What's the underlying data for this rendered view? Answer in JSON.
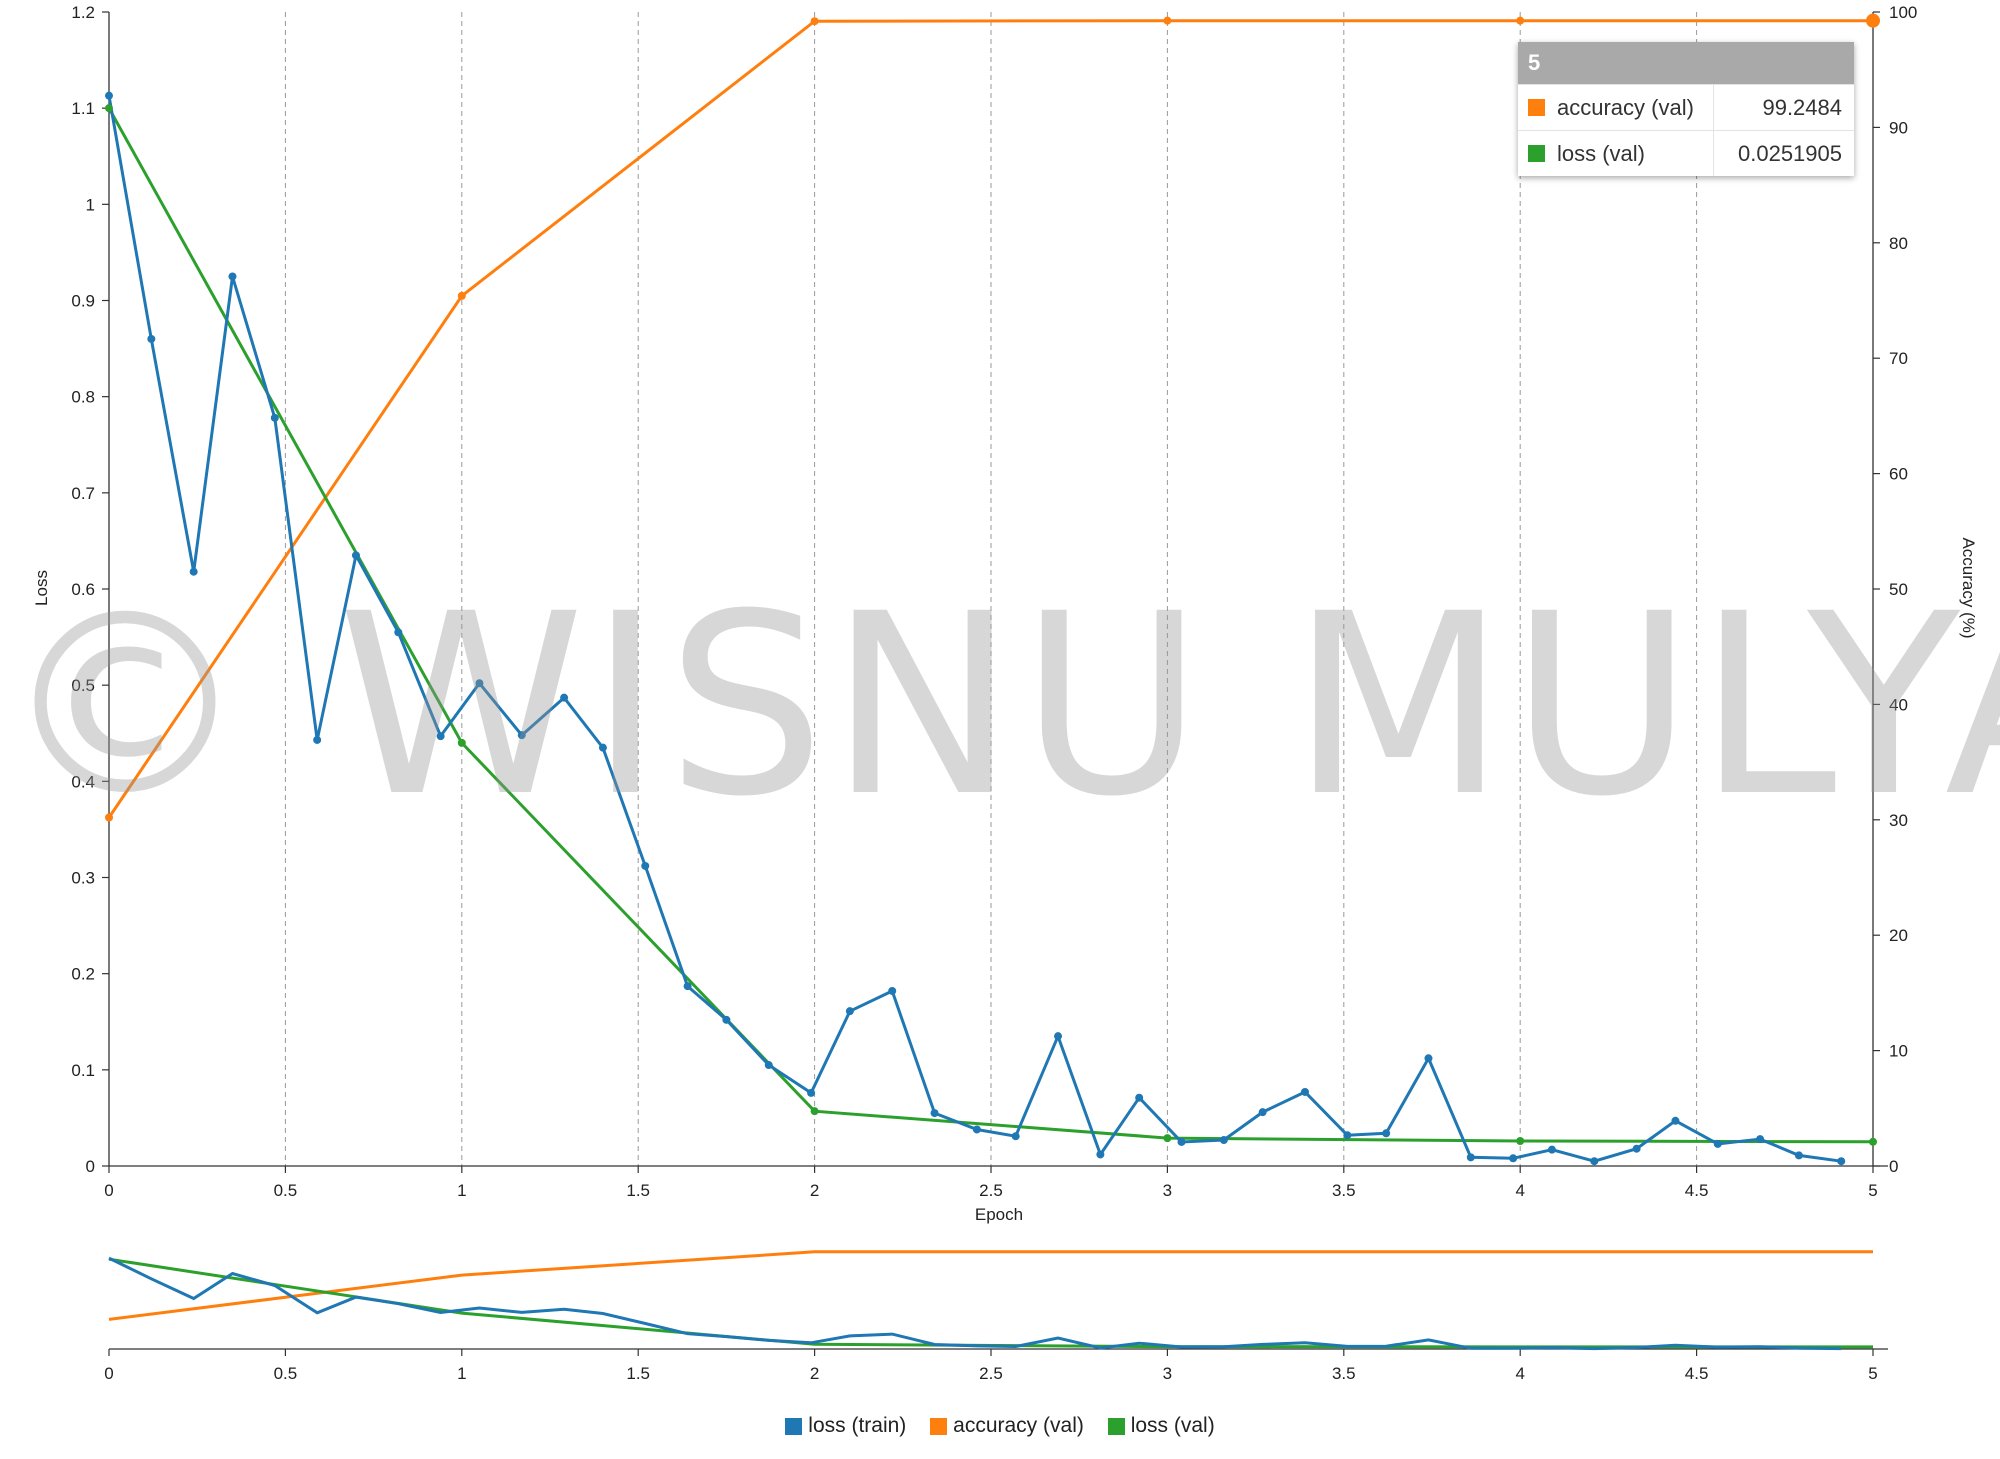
{
  "chart_data": {
    "type": "line",
    "xlabel": "Epoch",
    "ylabel": "Loss",
    "y2label": "Accuracy (%)",
    "xlim": [
      0,
      5
    ],
    "ylim": [
      0,
      1.2
    ],
    "y2lim": [
      0,
      100
    ],
    "x_ticks": [
      "0",
      "0.5",
      "1",
      "1.5",
      "2",
      "2.5",
      "3",
      "3.5",
      "4",
      "4.5",
      "5"
    ],
    "y_ticks": [
      "0",
      "0.1",
      "0.2",
      "0.3",
      "0.4",
      "0.5",
      "0.6",
      "0.7",
      "0.8",
      "0.9",
      "1",
      "1.1",
      "1.2"
    ],
    "y2_ticks": [
      "0",
      "10",
      "20",
      "30",
      "40",
      "50",
      "60",
      "70",
      "80",
      "90",
      "100"
    ],
    "grid": "vertical dashed",
    "legend_position": "bottom",
    "series": [
      {
        "name": "loss (train)",
        "color": "#1f77b4",
        "axis": "left",
        "x": [
          0,
          0.12,
          0.24,
          0.35,
          0.47,
          0.59,
          0.7,
          0.82,
          0.94,
          1.05,
          1.17,
          1.29,
          1.4,
          1.52,
          1.64,
          1.75,
          1.87,
          1.99,
          2.1,
          2.22,
          2.34,
          2.46,
          2.57,
          2.69,
          2.81,
          2.92,
          3.04,
          3.16,
          3.27,
          3.39,
          3.51,
          3.62,
          3.74,
          3.86,
          3.98,
          4.09,
          4.21,
          4.33,
          4.44,
          4.56,
          4.68,
          4.79,
          4.91
        ],
        "values": [
          1.113,
          0.86,
          0.618,
          0.925,
          0.778,
          0.443,
          0.635,
          0.555,
          0.447,
          0.502,
          0.448,
          0.487,
          0.435,
          0.312,
          0.187,
          0.152,
          0.105,
          0.076,
          0.161,
          0.182,
          0.055,
          0.038,
          0.031,
          0.135,
          0.012,
          0.071,
          0.025,
          0.027,
          0.056,
          0.077,
          0.032,
          0.034,
          0.112,
          0.009,
          0.008,
          0.017,
          0.005,
          0.018,
          0.047,
          0.023,
          0.028,
          0.011,
          0.005
        ]
      },
      {
        "name": "accuracy (val)",
        "color": "#ff7f0e",
        "axis": "right",
        "x": [
          0,
          1,
          2,
          3,
          4,
          5
        ],
        "values": [
          30.2,
          75.4,
          99.2,
          99.25,
          99.25,
          99.2484
        ]
      },
      {
        "name": "loss (val)",
        "color": "#2ca02c",
        "axis": "left",
        "x": [
          0,
          1,
          2,
          3,
          4,
          5
        ],
        "values": [
          1.1,
          0.44,
          0.057,
          0.029,
          0.026,
          0.0251905
        ]
      }
    ],
    "tooltip": {
      "title": "5",
      "rows": [
        {
          "label": "accuracy (val)",
          "value": "99.2484",
          "color": "#ff7f0e"
        },
        {
          "label": "loss (val)",
          "value": "0.0251905",
          "color": "#2ca02c"
        }
      ]
    },
    "annotations": [
      "© WISNU MULYA"
    ]
  }
}
